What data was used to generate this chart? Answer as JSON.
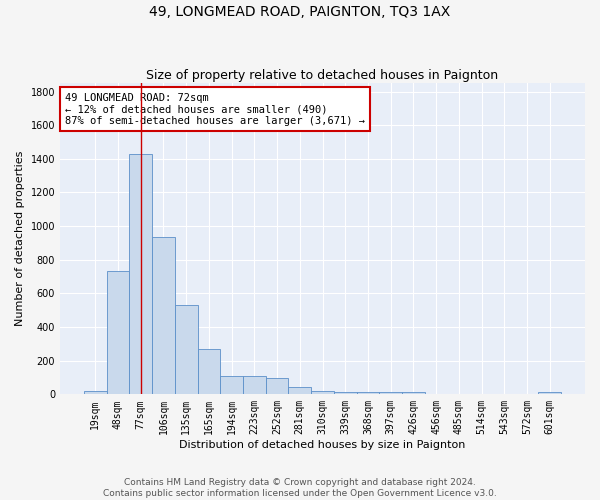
{
  "title": "49, LONGMEAD ROAD, PAIGNTON, TQ3 1AX",
  "subtitle": "Size of property relative to detached houses in Paignton",
  "xlabel": "Distribution of detached houses by size in Paignton",
  "ylabel": "Number of detached properties",
  "bar_labels": [
    "19sqm",
    "48sqm",
    "77sqm",
    "106sqm",
    "135sqm",
    "165sqm",
    "194sqm",
    "223sqm",
    "252sqm",
    "281sqm",
    "310sqm",
    "339sqm",
    "368sqm",
    "397sqm",
    "426sqm",
    "456sqm",
    "485sqm",
    "514sqm",
    "543sqm",
    "572sqm",
    "601sqm"
  ],
  "bar_values": [
    22,
    735,
    1430,
    935,
    530,
    270,
    110,
    110,
    95,
    45,
    22,
    15,
    15,
    15,
    15,
    0,
    0,
    0,
    0,
    0,
    15
  ],
  "bar_color": "#c9d9ec",
  "bar_edge_color": "#5b8fc9",
  "background_color": "#e8eef8",
  "fig_background_color": "#f5f5f5",
  "grid_color": "#ffffff",
  "property_line_x": 2.0,
  "property_line_color": "#cc0000",
  "annotation_text": "49 LONGMEAD ROAD: 72sqm\n← 12% of detached houses are smaller (490)\n87% of semi-detached houses are larger (3,671) →",
  "annotation_box_color": "#ffffff",
  "annotation_box_edge_color": "#cc0000",
  "ylim": [
    0,
    1850
  ],
  "yticks": [
    0,
    200,
    400,
    600,
    800,
    1000,
    1200,
    1400,
    1600,
    1800
  ],
  "footer_text": "Contains HM Land Registry data © Crown copyright and database right 2024.\nContains public sector information licensed under the Open Government Licence v3.0.",
  "title_fontsize": 10,
  "subtitle_fontsize": 9,
  "xlabel_fontsize": 8,
  "ylabel_fontsize": 8,
  "tick_fontsize": 7,
  "annotation_fontsize": 7.5,
  "footer_fontsize": 6.5
}
